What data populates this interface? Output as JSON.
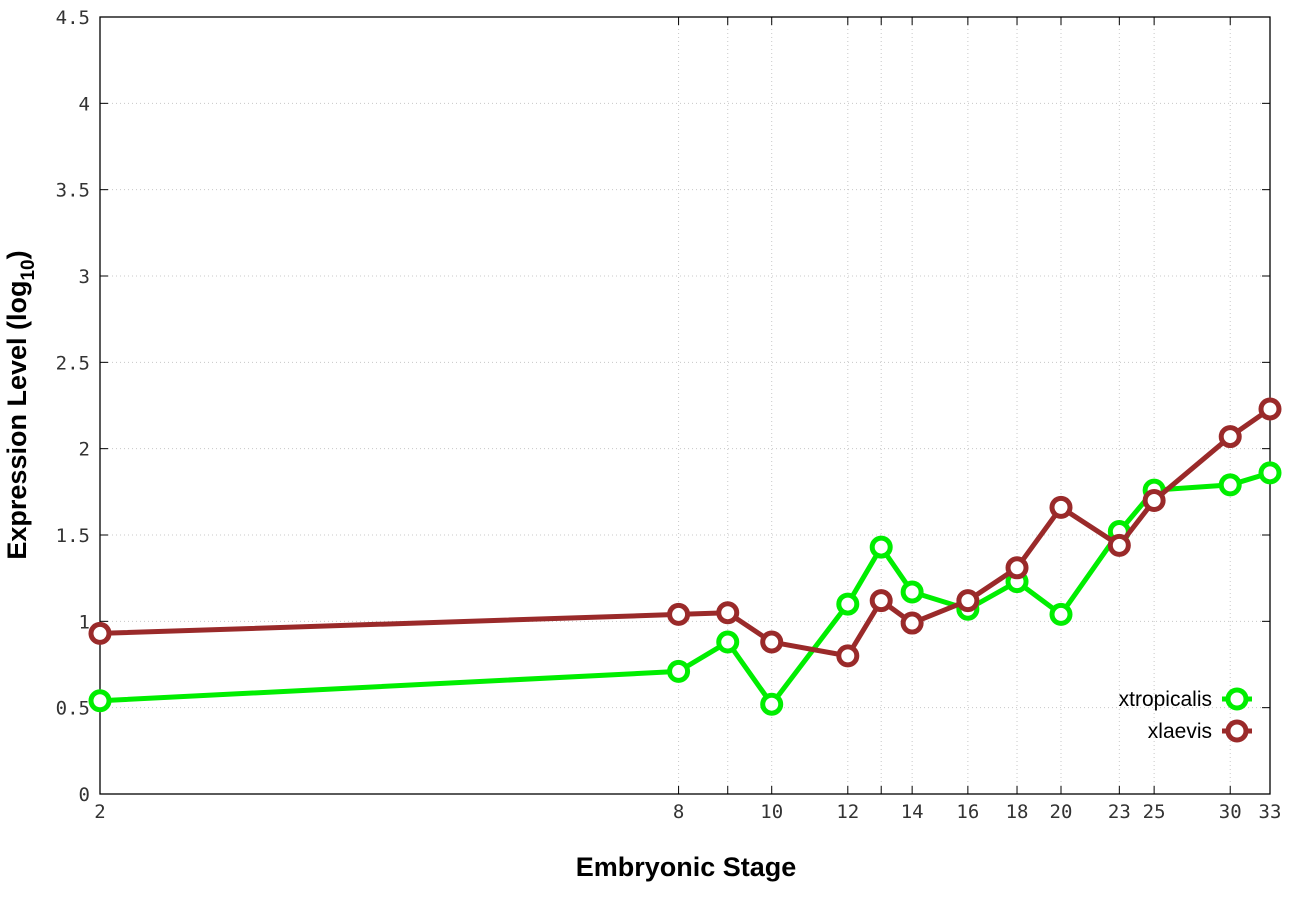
{
  "chart_data": {
    "type": "line",
    "title": "",
    "xlabel": "Embryonic Stage",
    "ylabel": "Expression Level (log",
    "ylabel_sub": "10",
    "ylabel_close": ")",
    "x_ticks": [
      "2",
      "8",
      "9",
      "10",
      "12",
      "13",
      "14",
      "16",
      "18",
      "20",
      "23",
      "25",
      "30",
      "33"
    ],
    "x_tick_labels": [
      "2",
      "8",
      "10",
      "12",
      "14",
      "16",
      "18",
      "20",
      "23",
      "25",
      "30",
      "33"
    ],
    "y_ticks": [
      "0",
      "0.5",
      "1",
      "1.5",
      "2",
      "2.5",
      "3",
      "3.5",
      "4",
      "4.5"
    ],
    "ylim": [
      0,
      4.5
    ],
    "grid": true,
    "legend_position": "bottom-right",
    "series": [
      {
        "name": "xtropicalis",
        "color": "#00ee00",
        "values": [
          0.54,
          0.71,
          0.88,
          0.52,
          1.1,
          1.43,
          1.17,
          1.07,
          1.23,
          1.04,
          1.52,
          1.76,
          1.79,
          1.86
        ]
      },
      {
        "name": "xlaevis",
        "color": "#9a2a2a",
        "values": [
          0.93,
          1.04,
          1.05,
          0.88,
          0.8,
          1.12,
          0.99,
          1.12,
          1.31,
          1.66,
          1.44,
          1.7,
          2.07,
          2.23
        ]
      }
    ]
  }
}
